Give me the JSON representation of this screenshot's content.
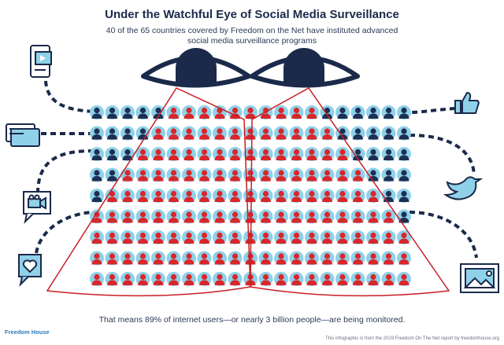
{
  "title": "Under the Watchful Eye of Social Media Surveillance",
  "subtitle": "40 of the 65 countries covered by Freedom on the Net have instituted advanced social media surveillance programs",
  "footer": "That means 89% of internet users—or nearly 3 billion people—are being monitored.",
  "logo": "Freedom House",
  "credit": "This infographic is from the 2019 Freedom On The Net report by freedomhouse.org",
  "icons": [
    "video-post-phone-icon",
    "chat-bubble-icon",
    "video-camera-message-icon",
    "heart-message-icon",
    "thumbs-up-icon",
    "bird-icon",
    "image-frame-icon",
    "eye-icon"
  ],
  "colors": {
    "navy": "#1b2a4a",
    "light_blue": "#8fd1e8",
    "red": "#d9262b",
    "dark_person": "#1d2f52"
  }
}
